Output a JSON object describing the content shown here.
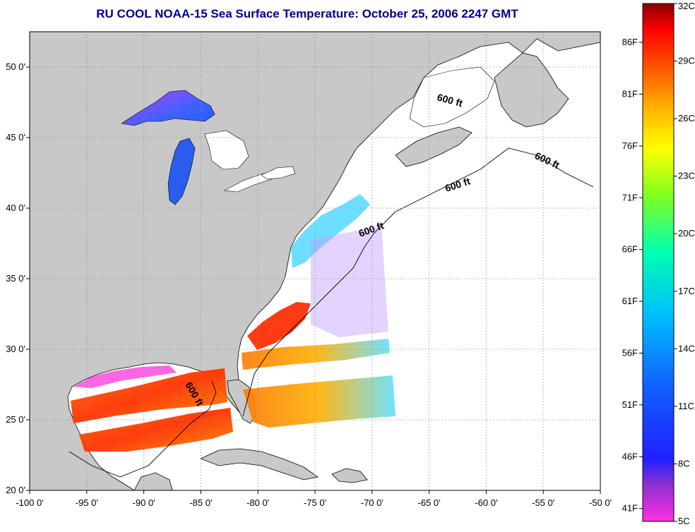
{
  "title": "RU COOL  NOAA-15  Sea Surface Temperature:  October 25, 2006 2247 GMT",
  "colors": {
    "title": "#00008b",
    "land": "#c8c8c8",
    "water": "#ffffff",
    "grid": "#888888",
    "frame": "#000000"
  },
  "map": {
    "x_ticks": [
      "-100 0'",
      "-95 0'",
      "-90 0'",
      "-85 0'",
      "-80 0'",
      "-75 0'",
      "-70 0'",
      "-65 0'",
      "-60 0'",
      "-55 0'",
      "-50 0'"
    ],
    "y_ticks": [
      "50 0'",
      "45 0'",
      "40 0'",
      "35 0'",
      "30 0'",
      "25 0'",
      "20 0'"
    ],
    "lon_range": [
      -100,
      -50
    ],
    "lat_range": [
      20,
      52.5
    ],
    "grid": true,
    "isobath_label": "600 ft"
  },
  "colorbar": {
    "fahrenheit_labels": [
      "86F",
      "81F",
      "76F",
      "71F",
      "66F",
      "61F",
      "56F",
      "51F",
      "46F",
      "41F"
    ],
    "celsius_labels": [
      "32C",
      "29C",
      "26C",
      "23C",
      "20C",
      "17C",
      "14C",
      "11C",
      "8C",
      "5C"
    ]
  }
}
